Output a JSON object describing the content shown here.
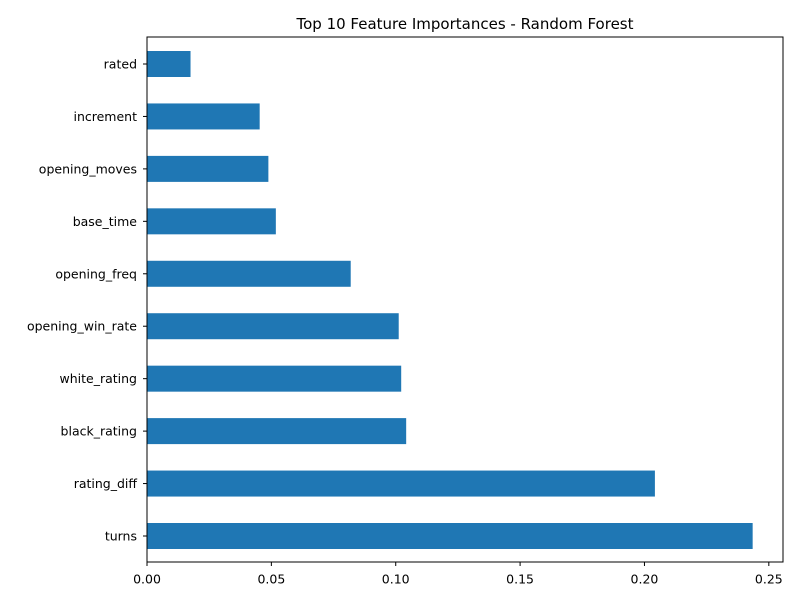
{
  "chart_data": {
    "type": "bar",
    "orientation": "horizontal",
    "title": "Top 10 Feature Importances - Random Forest",
    "xlabel": "",
    "ylabel": "",
    "categories": [
      "turns",
      "rating_diff",
      "black_rating",
      "white_rating",
      "opening_win_rate",
      "opening_freq",
      "base_time",
      "opening_moves",
      "increment",
      "rated"
    ],
    "values": [
      0.2435,
      0.2042,
      0.1042,
      0.1022,
      0.1012,
      0.0819,
      0.0518,
      0.0488,
      0.0453,
      0.0175
    ],
    "xlim": [
      0,
      0.2557
    ],
    "xticks": [
      0.0,
      0.05,
      0.1,
      0.15,
      0.2,
      0.25
    ],
    "xtick_labels": [
      "0.00",
      "0.05",
      "0.10",
      "0.15",
      "0.20",
      "0.25"
    ],
    "bar_color": "#1f77b4",
    "grid": false,
    "legend": "none"
  }
}
